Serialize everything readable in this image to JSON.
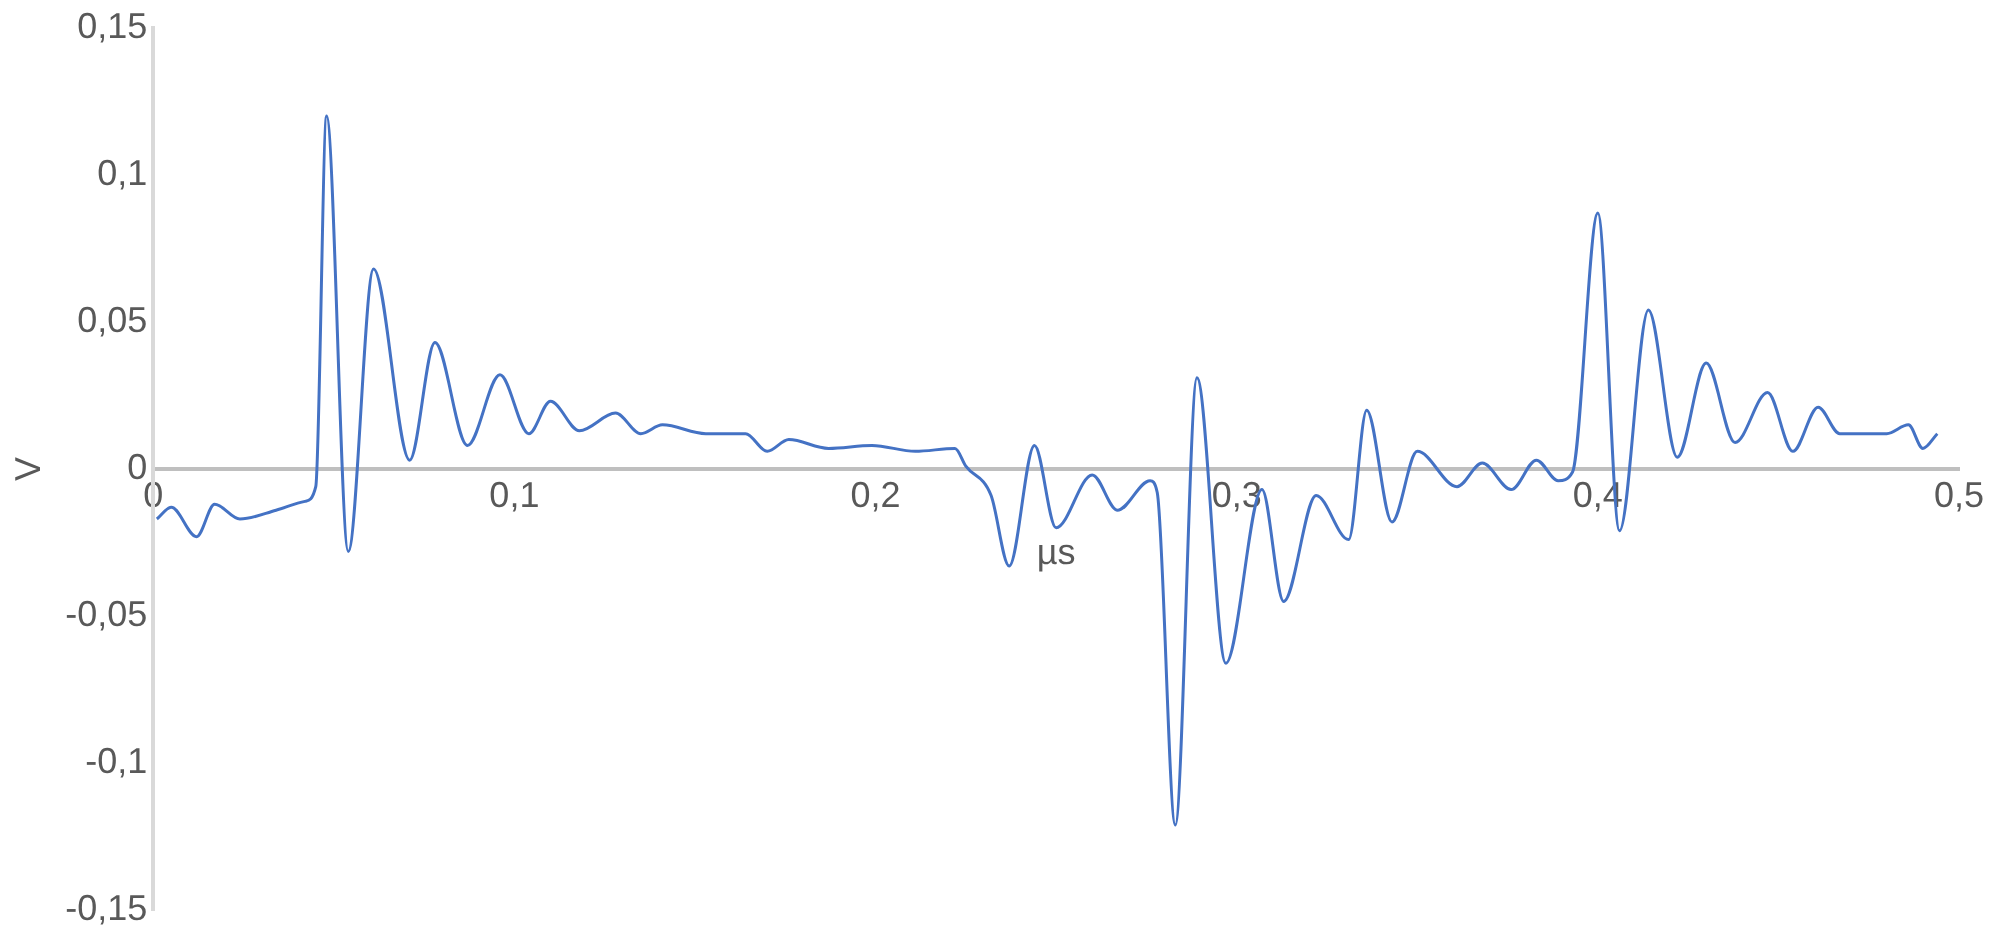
{
  "chart_data": {
    "type": "line",
    "xlabel": "µs",
    "ylabel": "V",
    "grid": false,
    "legend": false,
    "marker": "none",
    "line_style": "solid",
    "xlim": [
      0,
      0.5
    ],
    "xticks": [
      0,
      {
        "value": 0.1,
        "label": "0,1"
      },
      {
        "value": 0.2,
        "label": "0,2"
      },
      {
        "value": 0.3,
        "label": "0,3"
      },
      {
        "value": 0.4,
        "label": "0,4"
      },
      {
        "value": 0.5,
        "label": "0,5"
      }
    ],
    "ylim": [
      -0.15,
      0.15
    ],
    "yticks": [
      {
        "value": -0.15,
        "label": "-0,15"
      },
      {
        "value": -0.1,
        "label": "-0,1"
      },
      {
        "value": -0.05,
        "label": "-0,05"
      },
      0,
      {
        "value": 0.05,
        "label": "0,05"
      },
      {
        "value": 0.1,
        "label": "0,1"
      },
      {
        "value": 0.15,
        "label": "0,15"
      }
    ],
    "series": [
      {
        "color": "#4472c4",
        "x": [
          0.001,
          0.005,
          0.012,
          0.017,
          0.024,
          0.034,
          0.042,
          0.045,
          0.048,
          0.054,
          0.061,
          0.071,
          0.078,
          0.087,
          0.096,
          0.104,
          0.11,
          0.118,
          0.128,
          0.135,
          0.141,
          0.153,
          0.164,
          0.17,
          0.176,
          0.187,
          0.199,
          0.211,
          0.222,
          0.225,
          0.232,
          0.237,
          0.244,
          0.25,
          0.26,
          0.267,
          0.276,
          0.278,
          0.283,
          0.289,
          0.297,
          0.307,
          0.313,
          0.322,
          0.331,
          0.336,
          0.343,
          0.35,
          0.361,
          0.368,
          0.376,
          0.383,
          0.389,
          0.393,
          0.4,
          0.406,
          0.414,
          0.422,
          0.43,
          0.438,
          0.447,
          0.454,
          0.461,
          0.467,
          0.48,
          0.486,
          0.49,
          0.494
        ],
        "values": [
          -0.017,
          -0.013,
          -0.023,
          -0.012,
          -0.017,
          -0.014,
          -0.011,
          -0.006,
          0.12,
          -0.028,
          0.068,
          0.003,
          0.043,
          0.008,
          0.032,
          0.012,
          0.023,
          0.013,
          0.019,
          0.012,
          0.015,
          0.012,
          0.012,
          0.006,
          0.01,
          0.007,
          0.008,
          0.006,
          0.007,
          0.001,
          -0.009,
          -0.033,
          0.008,
          -0.02,
          -0.002,
          -0.014,
          -0.004,
          -0.008,
          -0.121,
          0.031,
          -0.066,
          -0.007,
          -0.045,
          -0.009,
          -0.024,
          0.02,
          -0.018,
          0.006,
          -0.006,
          0.002,
          -0.007,
          0.003,
          -0.004,
          -0.001,
          0.087,
          -0.021,
          0.054,
          0.004,
          0.036,
          0.009,
          0.026,
          0.006,
          0.021,
          0.012,
          0.012,
          0.015,
          0.007,
          0.012
        ]
      }
    ]
  }
}
